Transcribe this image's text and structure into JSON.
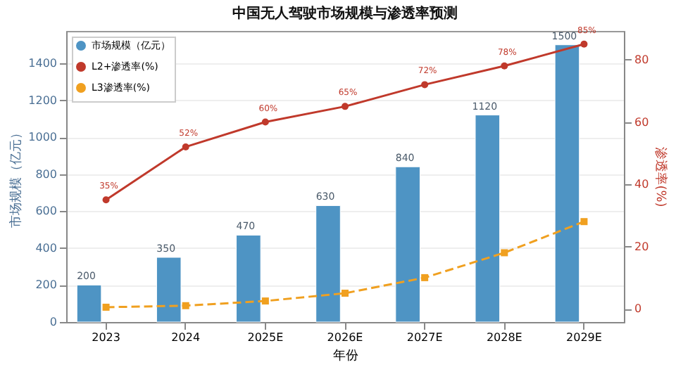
{
  "chart_data": {
    "type": "bar",
    "title": "中国无人驾驶市场规模与渗透率预测",
    "xlabel": "年份",
    "ylabel": "市场规模（亿元）",
    "y2label": "渗透率(%)",
    "categories": [
      "2023",
      "2024",
      "2025E",
      "2026E",
      "2027E",
      "2028E",
      "2029E"
    ],
    "series": [
      {
        "name": "市场规模（亿元）",
        "color": "#4e94c4",
        "values": [
          200,
          350,
          470,
          630,
          840,
          1120,
          1500
        ],
        "data_labels": true
      },
      {
        "name": "L2+渗透率(%)",
        "type": "line",
        "axis": "y2",
        "color": "#c0392b",
        "marker": "circle",
        "line_style": "solid",
        "values": [
          35,
          52,
          60,
          65,
          72,
          78,
          85
        ],
        "value_labels": [
          "35%",
          "52%",
          "60%",
          "65%",
          "72%",
          "78%",
          "85%"
        ]
      },
      {
        "name": "L3渗透率(%)",
        "type": "line",
        "axis": "y2",
        "color": "#f0a020",
        "marker": "square",
        "line_style": "dashed",
        "values": [
          0.5,
          1,
          2.5,
          5,
          10,
          18,
          28
        ]
      }
    ],
    "ylim": [
      0,
      1575
    ],
    "yticks": [
      0,
      200,
      400,
      600,
      800,
      1000,
      1200,
      1400
    ],
    "y2lim": [
      -4.25,
      89.25
    ],
    "y2ticks": [
      0,
      20,
      40,
      60,
      80
    ],
    "grid": "y",
    "legend": "top left"
  }
}
